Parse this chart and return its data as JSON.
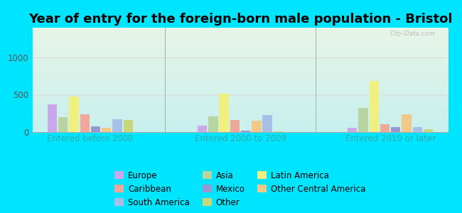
{
  "title": "Year of entry for the foreign-born male population - Bristol",
  "groups": [
    "Entered before 2000",
    "Entered 2000 to 2009",
    "Entered 2010 or later"
  ],
  "categories": [
    "Europe",
    "Asia",
    "Latin America",
    "Caribbean",
    "Mexico",
    "Other Central America",
    "South America",
    "Other"
  ],
  "values": {
    "Entered before 2000": [
      370,
      200,
      480,
      240,
      80,
      60,
      170,
      165
    ],
    "Entered 2000 to 2009": [
      90,
      210,
      510,
      165,
      15,
      155,
      230,
      10
    ],
    "Entered 2010 or later": [
      55,
      320,
      690,
      105,
      65,
      240,
      65,
      40
    ]
  },
  "colors": {
    "Europe": "#c8a8e8",
    "Asia": "#b8d4a0",
    "Latin America": "#f0f080",
    "Caribbean": "#f0a898",
    "Mexico": "#9898d0",
    "Other Central America": "#f0c888",
    "South America": "#a8c0e8",
    "Other": "#c8d878"
  },
  "background_color": "#00e5ff",
  "plot_bg_top": "#e8f5e8",
  "plot_bg_bottom": "#c8f0ee",
  "ylim": [
    0,
    1400
  ],
  "yticks": [
    0,
    500,
    1000
  ],
  "grid_color": "#dddddd",
  "title_fontsize": 13,
  "tick_fontsize": 8.5,
  "legend_fontsize": 8.5,
  "legend_order": [
    "Europe",
    "Caribbean",
    "South America",
    "Asia",
    "Mexico",
    "Other",
    "Latin America",
    "Other Central America"
  ]
}
